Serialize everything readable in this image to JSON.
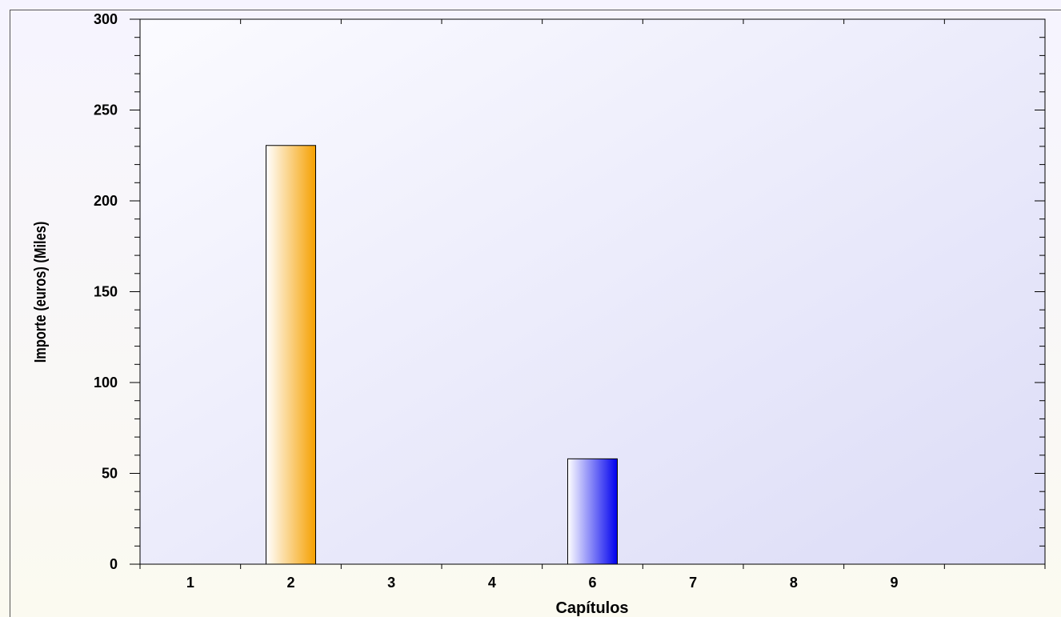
{
  "chart_data": {
    "type": "bar",
    "title": "",
    "xlabel": "Capítulos",
    "ylabel": "Importe (euros) (Miles)",
    "categories": [
      "1",
      "2",
      "3",
      "4",
      "6",
      "7",
      "8",
      "9"
    ],
    "values": [
      0,
      230.5,
      0,
      0,
      58,
      0,
      0,
      0
    ],
    "ylim": [
      0,
      300
    ],
    "yticks": [
      "0",
      "50",
      "100",
      "150",
      "200",
      "250",
      "300"
    ],
    "grid": false,
    "legend": "none",
    "colors": {
      "bar_2": "#f5a000",
      "bar_6": "#0000ee",
      "plot_background_top": "#f9f9ff",
      "plot_background_bottom": "#dcdcf8"
    }
  }
}
